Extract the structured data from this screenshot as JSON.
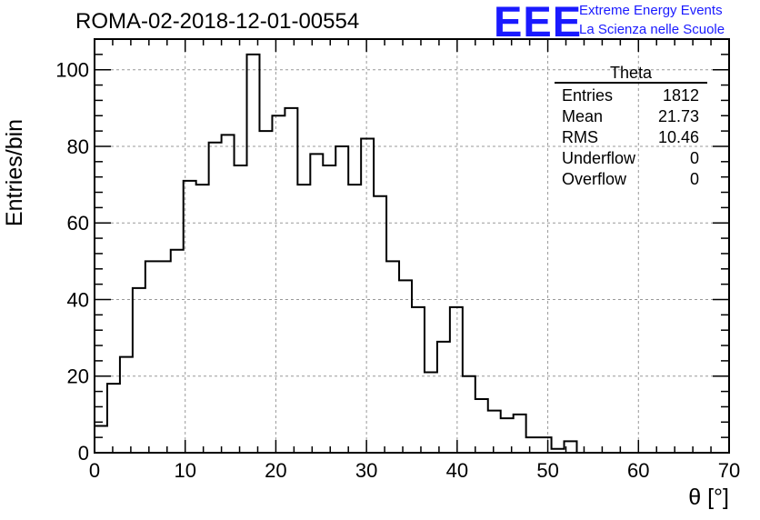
{
  "header": {
    "title": "ROMA-02-2018-12-01-00554",
    "logo_text": "EEE",
    "logo_line1": "Extreme Energy Events",
    "logo_line2": "La Scienza nelle Scuole"
  },
  "stats": {
    "name": "Theta",
    "rows": [
      {
        "label": "Entries",
        "value": "1812"
      },
      {
        "label": "Mean",
        "value": "21.73"
      },
      {
        "label": "RMS",
        "value": "10.46"
      },
      {
        "label": "Underflow",
        "value": "0"
      },
      {
        "label": "Overflow",
        "value": "0"
      }
    ]
  },
  "colors": {
    "line": "#000000",
    "grid": "#999999",
    "logo": "#1a1aff"
  },
  "chart_data": {
    "type": "histogram",
    "title": "ROMA-02-2018-12-01-00554",
    "xlabel": "θ [°]",
    "ylabel": "Entries/bin",
    "xlim": [
      0,
      70
    ],
    "ylim": [
      0,
      108
    ],
    "grid": true,
    "bin_width": 1.4,
    "bin_edges_start": 0,
    "values": [
      7,
      18,
      25,
      43,
      50,
      50,
      53,
      71,
      70,
      81,
      83,
      75,
      104,
      84,
      88,
      90,
      70,
      78,
      75,
      80,
      70,
      82,
      67,
      50,
      45,
      38,
      21,
      29,
      38,
      20,
      14,
      11,
      9,
      10,
      4,
      4,
      1,
      3,
      0,
      0,
      0,
      0,
      0,
      0,
      0,
      0,
      0,
      0,
      0,
      0
    ],
    "x_ticks": [
      0,
      10,
      20,
      30,
      40,
      50,
      60,
      70
    ],
    "x_tick_labels": [
      "0",
      "10",
      "20",
      "30",
      "40",
      "50",
      "60",
      "70"
    ],
    "y_ticks": [
      0,
      20,
      40,
      60,
      80,
      100
    ],
    "y_tick_labels": [
      "0",
      "20",
      "40",
      "60",
      "80",
      "100"
    ]
  }
}
